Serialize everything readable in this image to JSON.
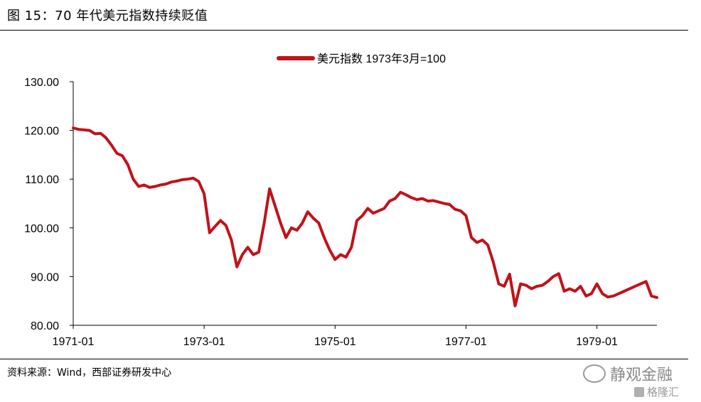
{
  "figure": {
    "title": "图 15：70 年代美元指数持续贬值",
    "source": "资料来源：Wind，西部证券研发中心"
  },
  "watermark": {
    "brand": "静观金融",
    "sub": "格隆汇",
    "icon": "wechat-bubble-icon"
  },
  "colors": {
    "series": "#c0121b",
    "axis": "#000000"
  },
  "chart_data": {
    "type": "line",
    "series": [
      {
        "name": "美元指数 1973年3月=100",
        "x": [
          "1971-01",
          "1971-02",
          "1971-03",
          "1971-04",
          "1971-05",
          "1971-06",
          "1971-07",
          "1971-08",
          "1971-09",
          "1971-10",
          "1971-11",
          "1971-12",
          "1972-01",
          "1972-02",
          "1972-03",
          "1972-04",
          "1972-05",
          "1972-06",
          "1972-07",
          "1972-08",
          "1972-09",
          "1972-10",
          "1972-11",
          "1972-12",
          "1973-01",
          "1973-02",
          "1973-03",
          "1973-04",
          "1973-05",
          "1973-06",
          "1973-07",
          "1973-08",
          "1973-09",
          "1973-10",
          "1973-11",
          "1973-12",
          "1974-01",
          "1974-02",
          "1974-03",
          "1974-04",
          "1974-05",
          "1974-06",
          "1974-07",
          "1974-08",
          "1974-09",
          "1974-10",
          "1974-11",
          "1974-12",
          "1975-01",
          "1975-02",
          "1975-03",
          "1975-04",
          "1975-05",
          "1975-06",
          "1975-07",
          "1975-08",
          "1975-09",
          "1975-10",
          "1975-11",
          "1975-12",
          "1976-01",
          "1976-02",
          "1976-03",
          "1976-04",
          "1976-05",
          "1976-06",
          "1976-07",
          "1976-08",
          "1976-09",
          "1976-10",
          "1976-11",
          "1976-12",
          "1977-01",
          "1977-02",
          "1977-03",
          "1977-04",
          "1977-05",
          "1977-06",
          "1977-07",
          "1977-08",
          "1977-09",
          "1977-10",
          "1977-11",
          "1977-12",
          "1978-01",
          "1978-02",
          "1978-03",
          "1978-04",
          "1978-05",
          "1978-06",
          "1978-07",
          "1978-08",
          "1978-09",
          "1978-10",
          "1978-11",
          "1978-12",
          "1979-01",
          "1979-02",
          "1979-03",
          "1979-04",
          "1979-05",
          "1979-06",
          "1979-07",
          "1979-08",
          "1979-09",
          "1979-10",
          "1979-11",
          "1979-12"
        ],
        "values": [
          120.5,
          120.2,
          120.1,
          120.0,
          119.3,
          119.4,
          118.5,
          117.0,
          115.3,
          114.8,
          113.0,
          110.0,
          108.5,
          108.8,
          108.3,
          108.5,
          108.8,
          109.0,
          109.4,
          109.6,
          109.9,
          110.0,
          110.2,
          109.5,
          107.0,
          99.0,
          100.3,
          101.5,
          100.5,
          97.5,
          92.0,
          94.5,
          96.0,
          94.5,
          95.0,
          101.0,
          108.0,
          104.5,
          101.0,
          98.0,
          100.0,
          99.5,
          101.0,
          103.3,
          102.0,
          101.0,
          98.0,
          95.5,
          93.5,
          94.5,
          94.0,
          96.0,
          101.5,
          102.5,
          104.0,
          103.0,
          103.5,
          104.0,
          105.5,
          106.0,
          107.3,
          106.8,
          106.2,
          105.8,
          106.0,
          105.5,
          105.6,
          105.3,
          105.0,
          104.8,
          103.8,
          103.5,
          102.5,
          98.0,
          97.0,
          97.5,
          96.5,
          93.0,
          88.5,
          88.0,
          90.5,
          84.0,
          88.5,
          88.2,
          87.5,
          88.0,
          88.2,
          89.0,
          90.0,
          90.6,
          87.0,
          87.5,
          87.0,
          88.0,
          86.0,
          86.5,
          88.5,
          86.5,
          85.8,
          86.0,
          86.5,
          87.0,
          87.5,
          88.0,
          88.5,
          89.0,
          86.0,
          85.7
        ]
      }
    ],
    "xticks": [
      "1971-01",
      "1973-01",
      "1975-01",
      "1977-01",
      "1979-01"
    ],
    "yticks": [
      "80.00",
      "90.00",
      "100.00",
      "110.00",
      "120.00",
      "130.00"
    ],
    "ylim": [
      80,
      130
    ],
    "xlim": [
      "1971-01",
      "1979-12"
    ],
    "grid": false,
    "legend": "top-center"
  }
}
